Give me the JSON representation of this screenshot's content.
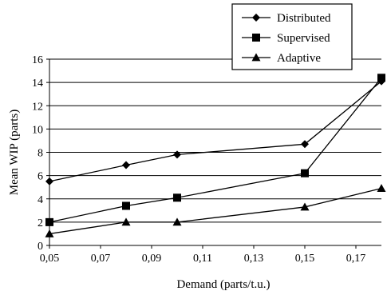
{
  "chart_data": {
    "type": "line",
    "xlabel": "Demand (parts/t.u.)",
    "ylabel": "Mean WIP (parts)",
    "xlim": [
      0.05,
      0.18
    ],
    "ylim": [
      0,
      16
    ],
    "x_ticks": [
      {
        "value": 0.05,
        "label": "0,05"
      },
      {
        "value": 0.07,
        "label": "0,07"
      },
      {
        "value": 0.09,
        "label": "0,09"
      },
      {
        "value": 0.11,
        "label": "0,11"
      },
      {
        "value": 0.13,
        "label": "0,13"
      },
      {
        "value": 0.15,
        "label": "0,15"
      },
      {
        "value": 0.17,
        "label": "0,17"
      }
    ],
    "y_ticks": [
      0,
      2,
      4,
      6,
      8,
      10,
      12,
      14,
      16
    ],
    "grid": "horizontal",
    "legend_position": "top-right",
    "series": [
      {
        "name": "Distributed",
        "marker": "diamond",
        "x": [
          0.05,
          0.08,
          0.1,
          0.15,
          0.18
        ],
        "y": [
          5.5,
          6.9,
          7.8,
          8.7,
          14.1
        ]
      },
      {
        "name": "Supervised",
        "marker": "square",
        "x": [
          0.05,
          0.08,
          0.1,
          0.15,
          0.18
        ],
        "y": [
          2.0,
          3.4,
          4.1,
          6.2,
          14.4
        ]
      },
      {
        "name": "Adaptive",
        "marker": "triangle",
        "x": [
          0.05,
          0.08,
          0.1,
          0.15,
          0.18
        ],
        "y": [
          1.0,
          2.0,
          2.0,
          3.3,
          4.9
        ]
      }
    ]
  }
}
